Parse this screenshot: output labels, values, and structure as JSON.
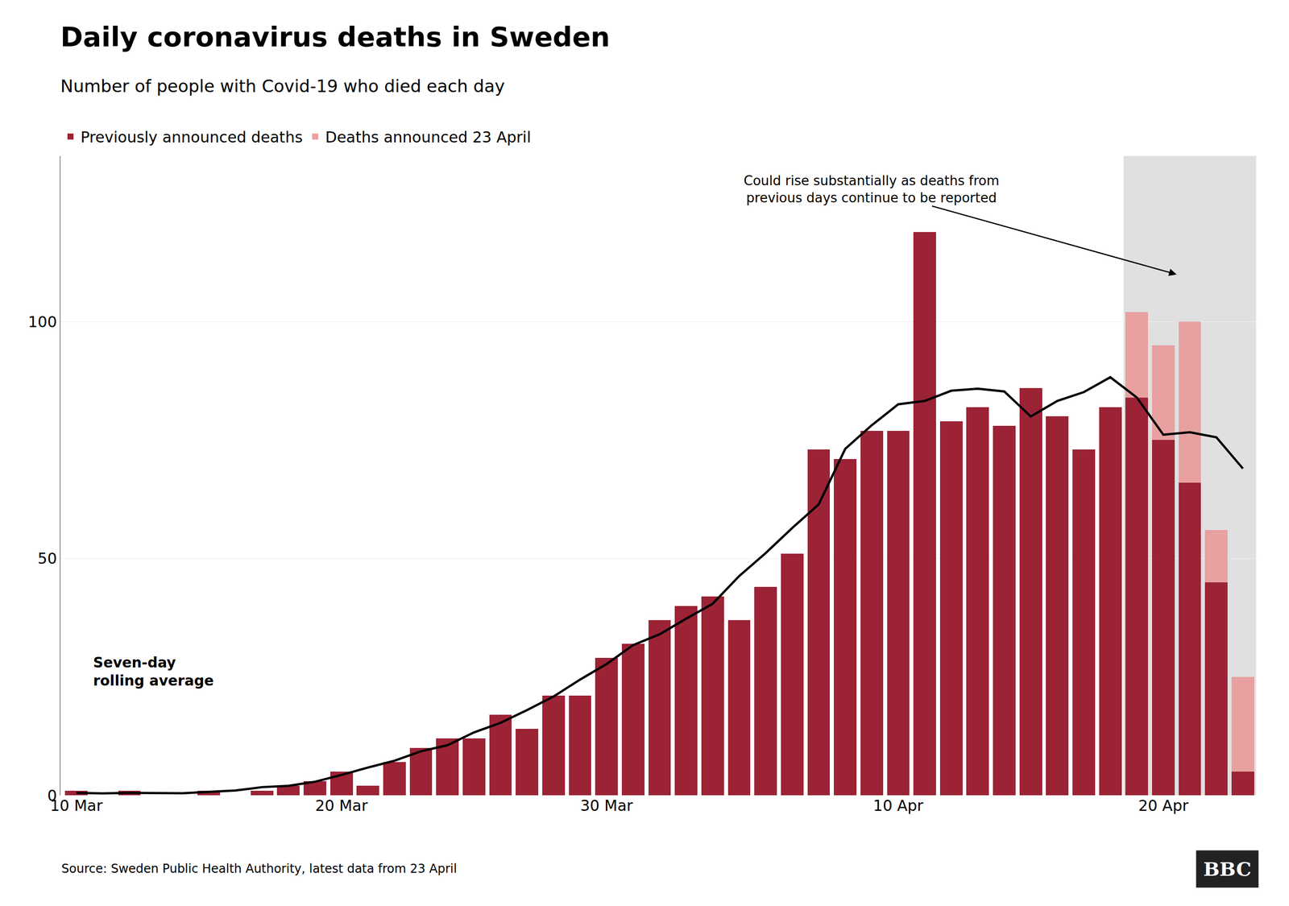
{
  "chart_data": {
    "type": "bar",
    "title": "Daily coronavirus deaths in Sweden",
    "subtitle": "Number of people with Covid-19 who died each day",
    "source": "Source: Sweden Public Health Authority, latest data from 23 April",
    "logo": "BBC",
    "annotations": [
      "Could rise substantially as deaths from\nprevious days continue to be reported"
    ],
    "categories": [
      "10 Mar",
      null,
      null,
      null,
      null,
      null,
      null,
      null,
      null,
      null,
      "20 Mar",
      null,
      null,
      null,
      null,
      null,
      null,
      null,
      null,
      null,
      "30 Mar",
      null,
      null,
      null,
      null,
      null,
      null,
      null,
      null,
      null,
      null,
      "10 Apr",
      null,
      null,
      null,
      null,
      null,
      null,
      null,
      null,
      null,
      "20 Apr",
      null,
      null,
      null
    ],
    "stacked": true,
    "series": [
      {
        "name": "Previously announced deaths",
        "color": "#9b2335",
        "values": [
          1,
          0,
          1,
          0,
          0,
          1,
          0,
          1,
          2,
          3,
          5,
          2,
          7,
          10,
          12,
          12,
          17,
          14,
          21,
          21,
          29,
          32,
          37,
          40,
          42,
          37,
          44,
          51,
          73,
          71,
          77,
          77,
          119,
          79,
          82,
          78,
          86,
          80,
          73,
          82,
          84,
          75,
          66,
          45,
          5
        ]
      },
      {
        "name": "Deaths announced 23 April",
        "color": "#e8a0a0",
        "values": [
          0,
          0,
          0,
          0,
          0,
          0,
          0,
          0,
          0,
          0,
          0,
          0,
          0,
          0,
          0,
          0,
          0,
          0,
          0,
          0,
          0,
          0,
          0,
          0,
          0,
          0,
          0,
          0,
          0,
          0,
          0,
          0,
          0,
          0,
          0,
          0,
          0,
          0,
          0,
          0,
          18,
          20,
          34,
          11,
          20
        ]
      },
      {
        "name": "Seven-day\nrolling average",
        "type": "line",
        "color": "#000000",
        "values": [
          0.5,
          0.4,
          0.5,
          0.428571,
          0.428571,
          0.714286,
          1,
          1.714286,
          2,
          2.857143,
          4.285714,
          5.857143,
          7.285714,
          9.285714,
          10.571429,
          13.285714,
          15.285714,
          18,
          20.857143,
          24.428571,
          27.714286,
          31.714286,
          34,
          37.285714,
          40.428571,
          46.285714,
          51.142857,
          56.428571,
          61.428571,
          73.142857,
          78.142857,
          82.571429,
          83.285714,
          85.428571,
          85.857143,
          85.285714,
          80,
          83.285714,
          85.142857,
          88.285714,
          84,
          76.142857,
          76.666667,
          75.6,
          69
        ]
      }
    ],
    "ylim": [
      0,
      135
    ],
    "yticks": [
      0,
      50,
      100
    ],
    "grid": true,
    "legend": "top left"
  }
}
